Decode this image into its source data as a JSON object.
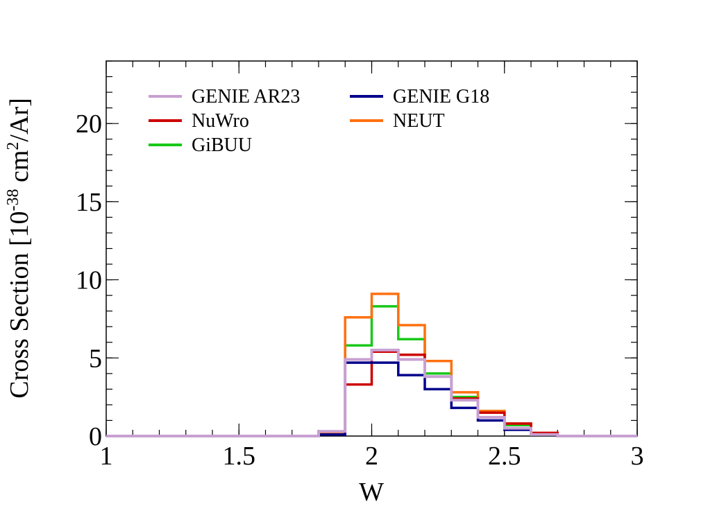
{
  "chart_data": {
    "type": "line",
    "step": true,
    "xlabel": "W",
    "ylabel": {
      "prefix": "Cross Section [10",
      "exp": "-38",
      "middle": " cm",
      "exp2": "2",
      "suffix": "/Ar]"
    },
    "xlim": [
      1,
      3
    ],
    "ylim": [
      0,
      24
    ],
    "x_ticks": [
      1,
      1.5,
      2,
      2.5,
      3
    ],
    "x_tick_labels": [
      "1",
      "1.5",
      "2",
      "2.5",
      "3"
    ],
    "y_ticks": [
      0,
      5,
      10,
      15,
      20
    ],
    "y_tick_labels": [
      "0",
      "5",
      "10",
      "15",
      "20"
    ],
    "grid": false,
    "legend": {
      "position": "top-left",
      "columns": 2
    },
    "bin_edges": [
      1.0,
      1.1,
      1.2,
      1.3,
      1.4,
      1.5,
      1.6,
      1.7,
      1.8,
      1.9,
      2.0,
      2.1,
      2.2,
      2.3,
      2.4,
      2.5,
      2.6,
      2.7,
      2.8,
      2.9,
      3.0
    ],
    "series": [
      {
        "name": "GENIE AR23",
        "color": "#c8a0d2",
        "values": [
          0,
          0,
          0,
          0,
          0,
          0,
          0,
          0,
          0.3,
          4.9,
          5.5,
          4.9,
          3.8,
          2.3,
          1.2,
          0.5,
          0.1,
          0,
          0,
          0
        ]
      },
      {
        "name": "GENIE G18",
        "color": "#00008b",
        "values": [
          0,
          0,
          0,
          0,
          0,
          0,
          0,
          0,
          0.1,
          4.7,
          4.7,
          3.9,
          3.0,
          1.8,
          1.0,
          0.4,
          0.1,
          0,
          0,
          0
        ]
      },
      {
        "name": "NuWro",
        "color": "#cc0000",
        "values": [
          0,
          0,
          0,
          0,
          0,
          0,
          0,
          0,
          0.1,
          3.3,
          5.4,
          5.2,
          3.8,
          2.4,
          1.5,
          0.8,
          0.2,
          0,
          0,
          0
        ]
      },
      {
        "name": "NEUT",
        "color": "#ff7010",
        "values": [
          0,
          0,
          0,
          0,
          0,
          0,
          0,
          0,
          0.2,
          7.6,
          9.1,
          7.1,
          4.8,
          2.8,
          1.6,
          0.8,
          0.2,
          0,
          0,
          0
        ]
      },
      {
        "name": "GiBUU",
        "color": "#19c819",
        "values": [
          0,
          0,
          0,
          0,
          0,
          0,
          0,
          0,
          0.2,
          5.8,
          8.3,
          6.2,
          4.0,
          2.5,
          1.6,
          0.7,
          0.1,
          0,
          0,
          0
        ]
      }
    ],
    "draw_order": [
      "GiBUU",
      "NEUT",
      "NuWro",
      "GENIE G18",
      "GENIE AR23"
    ]
  }
}
